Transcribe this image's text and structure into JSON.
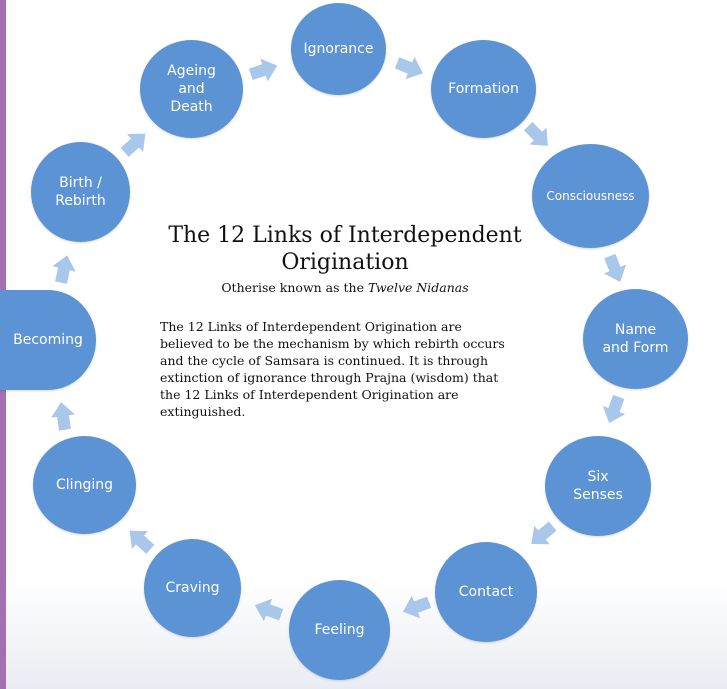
{
  "diagram": {
    "title": "The 12 Links of Interdependent Origination",
    "subtitle_prefix": "Otherise known as the ",
    "subtitle_emphasis": "Twelve Nidanas",
    "body_lines": [
      "The 12 Links of Interdependent Origination are",
      "believed to be the mechanism by which rebirth occurs",
      "and the cycle of Samsara is continued. It is through",
      "extinction of ignorance through Prajna (wisdom) that",
      "the 12 Links of Interdependent Origination are",
      "extinguished."
    ],
    "nodes": [
      "Ignorance",
      "Formation",
      "Consciousness",
      "Name\nand Form",
      "Six\nSenses",
      "Contact",
      "Feeling",
      "Craving",
      "Clinging",
      "Becoming",
      "Birth /\nRebirth",
      "Ageing\nand\nDeath"
    ],
    "colors": {
      "node_fill": "#5b93d4",
      "arrow_fill": "#a9c7ea",
      "frame_accent": "#a46fb3"
    }
  }
}
